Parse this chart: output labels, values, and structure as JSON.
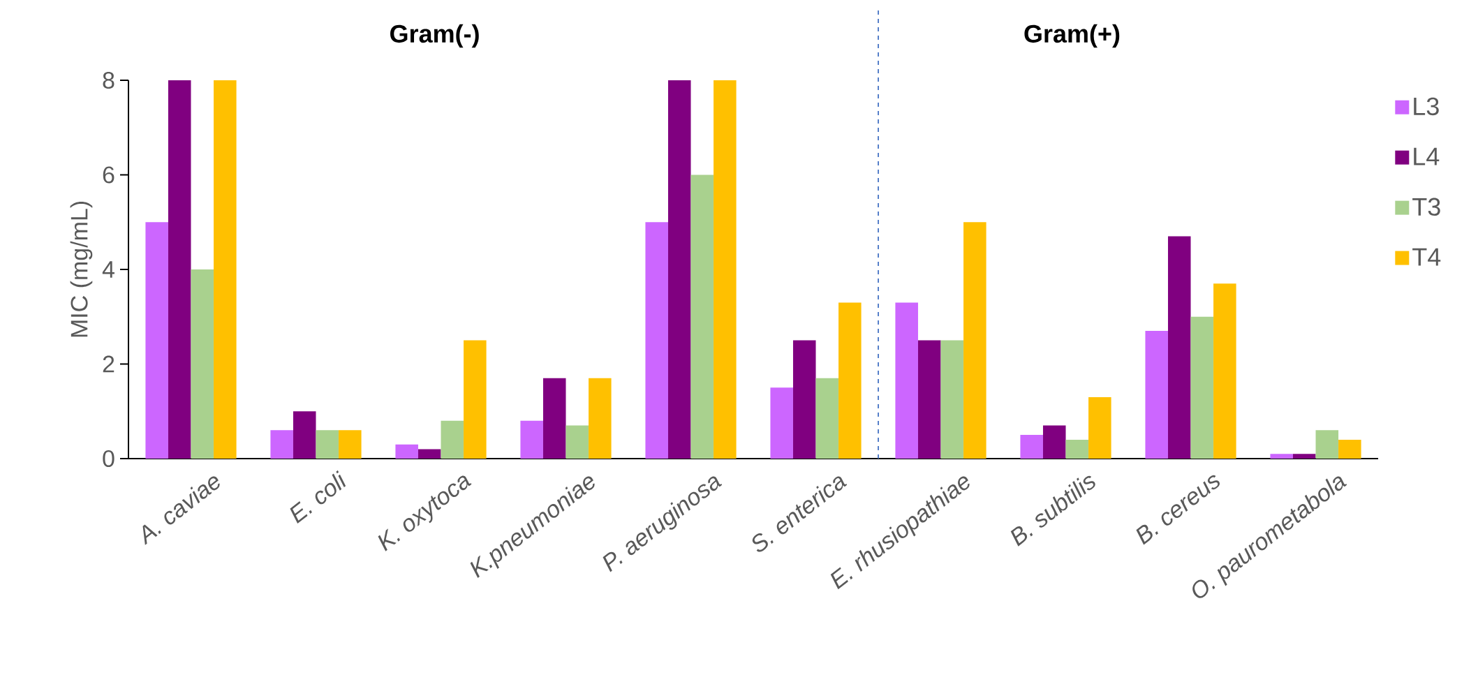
{
  "chart_data": {
    "type": "bar",
    "ylabel": "MIC (mg/mL)",
    "categories": [
      "A. caviae",
      "E. coli",
      "K. oxytoca",
      "K.pneumoniae",
      "P. aeruginosa",
      "S. enterica",
      "E. rhusiopathiae",
      "B. subtilis",
      "B. cereus",
      "O. paurometabola"
    ],
    "series": [
      {
        "name": "L3",
        "color": "#cc66ff",
        "values": [
          5,
          0.6,
          0.3,
          0.8,
          5,
          1.5,
          3.3,
          0.5,
          2.7,
          0.1
        ]
      },
      {
        "name": "L4",
        "color": "#800080",
        "values": [
          8,
          1.0,
          0.2,
          1.7,
          8,
          2.5,
          2.5,
          0.7,
          4.7,
          0.1
        ]
      },
      {
        "name": "T3",
        "color": "#a9d18e",
        "values": [
          4,
          0.6,
          0.8,
          0.7,
          6,
          1.7,
          2.5,
          0.4,
          3.0,
          0.6
        ]
      },
      {
        "name": "T4",
        "color": "#ffc000",
        "values": [
          8,
          0.6,
          2.5,
          1.7,
          8,
          3.3,
          5.0,
          1.3,
          3.7,
          0.4
        ]
      }
    ],
    "ylim": [
      0,
      8
    ],
    "yticks": [
      0,
      2,
      4,
      6,
      8
    ],
    "annotations": [
      "Gram(-)",
      "Gram(+)"
    ],
    "legend": "right",
    "grid": false
  }
}
